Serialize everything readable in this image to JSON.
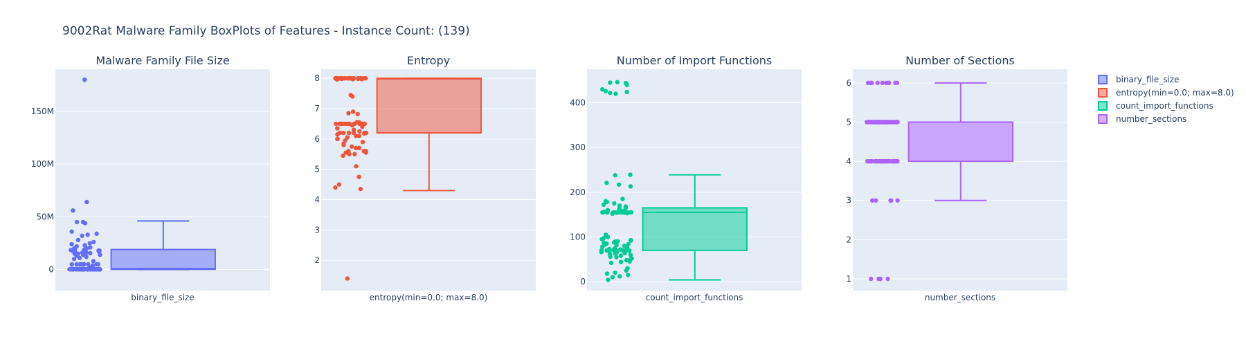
{
  "title": "9002Rat Malware Family BoxPlots of Features - Instance Count: (139)",
  "chart_data": [
    {
      "type": "box",
      "title": "Malware Family File Size",
      "category": "binary_file_size",
      "color": "#636efa",
      "fill": "rgba(99,110,250,0.5)",
      "ylim": [
        -20000000,
        190000000
      ],
      "yticks": [
        0,
        50000000,
        100000000,
        150000000
      ],
      "ytick_labels": [
        "0",
        "50M",
        "100M",
        "150M"
      ],
      "box": {
        "min": 0,
        "q1": 200000,
        "median": 1000000,
        "q3": 19000000,
        "max": 46000000
      },
      "points": [
        180000000,
        64000000,
        56000000,
        45000000,
        45000000,
        44000000,
        36000000,
        34000000,
        33000000,
        32000000,
        28000000,
        26000000,
        25000000,
        24000000,
        23000000,
        22000000,
        21000000,
        20000000,
        20000000,
        19000000,
        19000000,
        18500000,
        18000000,
        18000000,
        17500000,
        17000000,
        17000000,
        16500000,
        16000000,
        16000000,
        15500000,
        15000000,
        15000000,
        14000000,
        14000000,
        13000000,
        12000000,
        11000000,
        10000000,
        8000000,
        5000000,
        5000000,
        5000000,
        5000000,
        5000000,
        5000000,
        5000000,
        5000000,
        5000000,
        5000000,
        4000000,
        2000000,
        500000,
        500000,
        500000,
        500000,
        500000,
        500000,
        500000,
        500000,
        500000,
        500000,
        400000,
        400000,
        400000,
        400000,
        400000,
        400000,
        400000,
        400000,
        400000,
        400000,
        300000,
        300000,
        300000,
        300000,
        300000,
        300000,
        300000,
        300000,
        300000,
        300000,
        200000,
        200000,
        200000,
        200000,
        200000,
        200000,
        200000,
        200000,
        200000,
        200000,
        100000,
        100000,
        100000,
        100000,
        100000,
        100000,
        100000,
        100000,
        100000,
        100000
      ]
    },
    {
      "type": "box",
      "title": "Entropy",
      "category": "entropy(min=0.0; max=8.0)",
      "color": "#ef553b",
      "fill": "rgba(239,85,59,0.5)",
      "ylim": [
        1.0,
        8.3
      ],
      "yticks": [
        2,
        3,
        4,
        5,
        6,
        7,
        8
      ],
      "ytick_labels": [
        "2",
        "3",
        "4",
        "5",
        "6",
        "7",
        "8"
      ],
      "box": {
        "min": 4.3,
        "q1": 6.2,
        "median": 7.98,
        "q3": 8.0,
        "max": 8.0
      },
      "points": [
        8.0,
        8.0,
        8.0,
        8.0,
        8.0,
        8.0,
        8.0,
        8.0,
        8.0,
        8.0,
        8.0,
        8.0,
        8.0,
        8.0,
        8.0,
        8.0,
        8.0,
        8.0,
        8.0,
        8.0,
        8.0,
        8.0,
        8.0,
        8.0,
        8.0,
        8.0,
        8.0,
        8.0,
        8.0,
        8.0,
        7.98,
        7.98,
        7.97,
        7.97,
        7.96,
        7.45,
        7.4,
        6.9,
        6.85,
        6.82,
        6.55,
        6.55,
        6.5,
        6.5,
        6.5,
        6.5,
        6.5,
        6.5,
        6.5,
        6.5,
        6.5,
        6.5,
        6.5,
        6.5,
        6.5,
        6.5,
        6.5,
        6.5,
        6.45,
        6.4,
        6.35,
        6.3,
        6.25,
        6.2,
        6.2,
        6.2,
        6.2,
        6.2,
        6.2,
        6.18,
        6.15,
        6.1,
        6.1,
        6.05,
        6.0,
        6.0,
        5.95,
        5.9,
        5.85,
        5.8,
        5.75,
        5.7,
        5.7,
        5.6,
        5.6,
        5.6,
        5.55,
        5.55,
        5.5,
        5.5,
        5.45,
        5.1,
        4.75,
        4.5,
        4.4,
        4.35,
        1.4
      ]
    },
    {
      "type": "box",
      "title": "Number of Import Functions",
      "category": "count_import_functions",
      "color": "#00cc96",
      "fill": "rgba(0,204,150,0.5)",
      "ylim": [
        -20,
        475
      ],
      "yticks": [
        0,
        100,
        200,
        300,
        400
      ],
      "ytick_labels": [
        "0",
        "100",
        "200",
        "300",
        "400"
      ],
      "box": {
        "min": 4,
        "q1": 70,
        "median": 155,
        "q3": 165,
        "max": 239
      },
      "points": [
        446,
        445,
        444,
        440,
        430,
        426,
        424,
        422,
        420,
        239,
        238,
        221,
        217,
        213,
        185,
        180,
        178,
        175,
        172,
        170,
        168,
        165,
        163,
        160,
        158,
        157,
        156,
        156,
        155,
        155,
        155,
        155,
        155,
        155,
        155,
        155,
        155,
        155,
        155,
        155,
        155,
        155,
        155,
        155,
        155,
        155,
        155,
        154,
        153,
        152,
        105,
        100,
        97,
        95,
        93,
        92,
        90,
        90,
        88,
        87,
        85,
        84,
        83,
        82,
        80,
        78,
        76,
        75,
        73,
        72,
        71,
        70,
        70,
        70,
        70,
        70,
        70,
        70,
        70,
        69,
        68,
        67,
        66,
        65,
        64,
        63,
        62,
        60,
        58,
        56,
        55,
        52,
        50,
        48,
        45,
        44,
        42,
        30,
        25,
        20,
        18,
        15,
        12,
        10,
        4
      ]
    },
    {
      "type": "box",
      "title": "Number of Sections",
      "category": "number_sections",
      "color": "#ab63fa",
      "fill": "rgba(171,99,250,0.5)",
      "ylim": [
        0.7,
        6.35
      ],
      "yticks": [
        1,
        2,
        3,
        4,
        5,
        6
      ],
      "ytick_labels": [
        "1",
        "2",
        "3",
        "4",
        "5",
        "6"
      ],
      "box": {
        "min": 3,
        "q1": 4,
        "median": 5,
        "q3": 5,
        "max": 6
      },
      "points": [
        6,
        6,
        6,
        6,
        6,
        6,
        6,
        6,
        6,
        6,
        5,
        5,
        5,
        5,
        5,
        5,
        5,
        5,
        5,
        5,
        5,
        5,
        5,
        5,
        5,
        5,
        5,
        5,
        5,
        5,
        5,
        5,
        5,
        5,
        5,
        5,
        5,
        5,
        5,
        5,
        5,
        5,
        5,
        5,
        5,
        5,
        5,
        5,
        5,
        5,
        5,
        5,
        5,
        5,
        5,
        5,
        5,
        5,
        5,
        5,
        5,
        5,
        5,
        5,
        5,
        5,
        5,
        5,
        5,
        5,
        5,
        5,
        5,
        5,
        5,
        5,
        5,
        5,
        5,
        5,
        4,
        4,
        4,
        4,
        4,
        4,
        4,
        4,
        4,
        4,
        4,
        4,
        4,
        4,
        4,
        4,
        4,
        4,
        4,
        4,
        4,
        4,
        4,
        4,
        4,
        4,
        4,
        4,
        4,
        4,
        4,
        4,
        4,
        4,
        4,
        4,
        4,
        4,
        4,
        4,
        3,
        3,
        3,
        3,
        3,
        3,
        1,
        1,
        1,
        1
      ]
    }
  ],
  "legend": [
    {
      "label": "binary_file_size",
      "color": "#636efa"
    },
    {
      "label": "entropy(min=0.0; max=8.0)",
      "color": "#ef553b"
    },
    {
      "label": "count_import_functions",
      "color": "#00cc96"
    },
    {
      "label": "number_sections",
      "color": "#ab63fa"
    }
  ]
}
